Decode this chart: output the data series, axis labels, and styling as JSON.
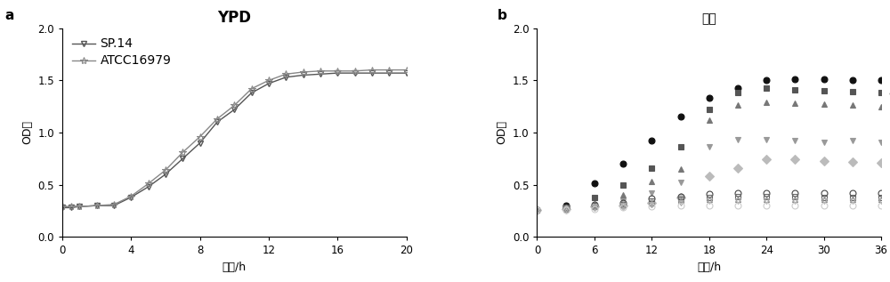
{
  "title_a": "YPD",
  "title_b": "乙酸",
  "xlabel": "时间/h",
  "ylabel": "OD値",
  "label_a": "a",
  "label_b": "b",
  "ypd_x": [
    0,
    0.5,
    1,
    2,
    3,
    4,
    5,
    6,
    7,
    8,
    9,
    10,
    11,
    12,
    13,
    14,
    15,
    16,
    17,
    18,
    19,
    20
  ],
  "ypd_sp14": [
    0.28,
    0.28,
    0.29,
    0.3,
    0.3,
    0.38,
    0.48,
    0.6,
    0.75,
    0.9,
    1.1,
    1.22,
    1.38,
    1.47,
    1.53,
    1.55,
    1.56,
    1.57,
    1.57,
    1.57,
    1.57,
    1.57
  ],
  "ypd_atcc": [
    0.29,
    0.29,
    0.29,
    0.3,
    0.31,
    0.39,
    0.51,
    0.64,
    0.81,
    0.96,
    1.13,
    1.26,
    1.42,
    1.5,
    1.56,
    1.58,
    1.59,
    1.59,
    1.59,
    1.6,
    1.6,
    1.6
  ],
  "ac_x": [
    0,
    3,
    6,
    9,
    12,
    15,
    18,
    21,
    24,
    27,
    30,
    33,
    36
  ],
  "sp14_4": [
    0.26,
    0.3,
    0.51,
    0.7,
    0.92,
    1.15,
    1.33,
    1.43,
    1.5,
    1.51,
    1.51,
    1.5,
    1.5
  ],
  "sp14_8": [
    0.26,
    0.28,
    0.38,
    0.5,
    0.66,
    0.86,
    1.22,
    1.38,
    1.43,
    1.41,
    1.4,
    1.39,
    1.38
  ],
  "sp14_12": [
    0.26,
    0.28,
    0.32,
    0.4,
    0.53,
    0.65,
    1.12,
    1.26,
    1.29,
    1.28,
    1.27,
    1.26,
    1.25
  ],
  "sp14_16": [
    0.26,
    0.28,
    0.3,
    0.34,
    0.42,
    0.52,
    0.86,
    0.93,
    0.93,
    0.92,
    0.91,
    0.92,
    0.91
  ],
  "sp14_20": [
    0.26,
    0.27,
    0.29,
    0.3,
    0.33,
    0.38,
    0.58,
    0.66,
    0.74,
    0.74,
    0.73,
    0.72,
    0.71
  ],
  "atcc_4": [
    0.26,
    0.28,
    0.31,
    0.33,
    0.37,
    0.39,
    0.41,
    0.42,
    0.42,
    0.42,
    0.42,
    0.42,
    0.42
  ],
  "atcc_8": [
    0.26,
    0.27,
    0.3,
    0.31,
    0.34,
    0.36,
    0.38,
    0.39,
    0.39,
    0.39,
    0.38,
    0.38,
    0.38
  ],
  "atcc_12": [
    0.26,
    0.27,
    0.29,
    0.31,
    0.33,
    0.35,
    0.36,
    0.36,
    0.36,
    0.36,
    0.36,
    0.36,
    0.36
  ],
  "atcc_16": [
    0.26,
    0.27,
    0.28,
    0.3,
    0.31,
    0.33,
    0.34,
    0.34,
    0.34,
    0.34,
    0.34,
    0.34,
    0.34
  ],
  "atcc_20": [
    0.26,
    0.26,
    0.27,
    0.28,
    0.29,
    0.3,
    0.3,
    0.3,
    0.3,
    0.3,
    0.3,
    0.3,
    0.3
  ],
  "ypd_xlim": [
    0,
    20
  ],
  "ypd_ylim": [
    0.0,
    2.0
  ],
  "ac_xlim": [
    0,
    36
  ],
  "ac_ylim": [
    0.0,
    2.0
  ],
  "ypd_xticks": [
    0,
    4,
    8,
    12,
    16,
    20
  ],
  "ypd_yticks": [
    0.0,
    0.5,
    1.0,
    1.5,
    2.0
  ],
  "ac_xticks": [
    0,
    6,
    12,
    18,
    24,
    30,
    36
  ],
  "ac_yticks": [
    0.0,
    0.5,
    1.0,
    1.5,
    2.0
  ]
}
